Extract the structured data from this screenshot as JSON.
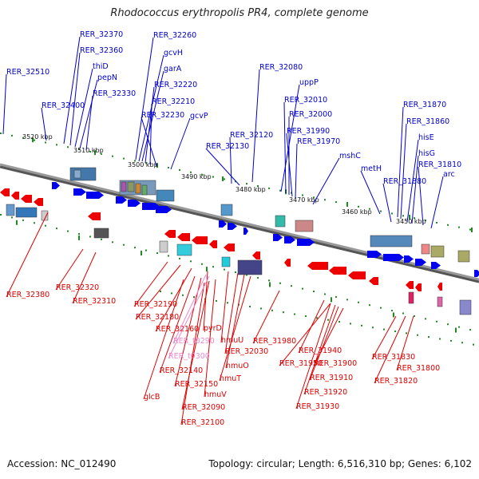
{
  "title": "Rhodococcus erythropolis PR4, complete genome",
  "accession": "Accession: NC_012490",
  "topology": "Topology: circular; Length: 6,516,310 bp; Genes: 6,102",
  "colors": {
    "forward_label": "#0000cc",
    "reverse_label": "#dd0000",
    "rna_label": "#ee88cc",
    "backbone": "#777777",
    "tick": "#228822"
  },
  "kbp_labels": [
    "3520 kbp",
    "3510 kbp",
    "3500 kbp",
    "3490 kbp",
    "3480 kbp",
    "3470 kbp",
    "3460 kbp",
    "3450 kbp"
  ],
  "forward_labels": [
    "RER_32510",
    "RER_32370",
    "RER_32360",
    "thiD",
    "pepN",
    "RER_32330",
    "RER_32400",
    "RER_32260",
    "gcvH",
    "garA",
    "RER_32220",
    "RER_32210",
    "RER_32230",
    "gcvP",
    "RER_32080",
    "uppP",
    "RER_32010",
    "RER_32000",
    "RER_31990",
    "RER_31970",
    "RER_32120",
    "RER_32130",
    "mshC",
    "metH",
    "RER_31870",
    "RER_31860",
    "hisE",
    "hisG",
    "RER_31810",
    "arc",
    "RER_31880"
  ],
  "reverse_labels": [
    "RER_32380",
    "RER_32320",
    "RER_32310",
    "RER_32190",
    "RER_32180",
    "RER_32160",
    "pyrD",
    "hmuU",
    "RER_32030",
    "hmuO",
    "hmuT",
    "RER_32140",
    "RER_32150",
    "glcB",
    "hmuV",
    "RER_32090",
    "RER_32100",
    "RER_31980",
    "RER_31940",
    "RER_31950",
    "RER_31900",
    "RER_31910",
    "RER_31920",
    "RER_31930",
    "RER_31830",
    "RER_31800",
    "RER_31820"
  ],
  "rna_labels": [
    "RER_t0290",
    "RER_t0300"
  ]
}
